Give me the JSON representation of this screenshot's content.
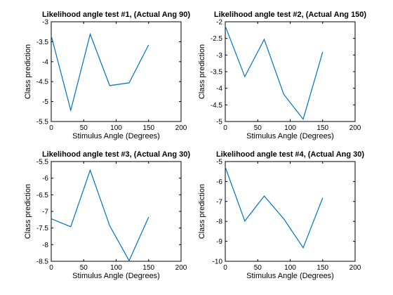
{
  "line_color": "#0072bd",
  "chart_data": [
    {
      "type": "line",
      "title": "Likelihood angle test #1, (Actual Ang 90)",
      "xlabel": "Stimulus Angle (Degrees)",
      "ylabel": "Class prediction",
      "xlim": [
        0,
        200
      ],
      "ylim": [
        -5.5,
        -3
      ],
      "xticks": [
        0,
        50,
        100,
        150,
        200
      ],
      "yticks": [
        -5.5,
        -5,
        -4.5,
        -4,
        -3.5,
        -3
      ],
      "xtick_labels": [
        "0",
        "50",
        "100",
        "150",
        "200"
      ],
      "ytick_labels": [
        "-5.5",
        "-5",
        "-4.5",
        "-4",
        "-3.5",
        "-3"
      ],
      "x": [
        0,
        30,
        60,
        90,
        120,
        150
      ],
      "y": [
        -3.35,
        -5.22,
        -3.31,
        -4.6,
        -4.53,
        -3.58
      ]
    },
    {
      "type": "line",
      "title": "Likelihood angle test #2, (Actual Ang 150)",
      "xlabel": "Stimulus Angle (Degrees)",
      "ylabel": "Class prediction",
      "xlim": [
        0,
        200
      ],
      "ylim": [
        -5,
        -2
      ],
      "xticks": [
        0,
        50,
        100,
        150,
        200
      ],
      "yticks": [
        -5,
        -4.5,
        -4,
        -3.5,
        -3,
        -2.5,
        -2
      ],
      "xtick_labels": [
        "0",
        "50",
        "100",
        "150",
        "200"
      ],
      "ytick_labels": [
        "-5",
        "-4.5",
        "-4",
        "-3.5",
        "-3",
        "-2.5",
        "-2"
      ],
      "x": [
        0,
        30,
        60,
        90,
        120,
        150
      ],
      "y": [
        -2.13,
        -3.65,
        -2.53,
        -4.18,
        -4.93,
        -2.91
      ]
    },
    {
      "type": "line",
      "title": "Likelihood angle test #3, (Actual Ang 30)",
      "xlabel": "Stimulus Angle (Degrees)",
      "ylabel": "Class prediction",
      "xlim": [
        0,
        200
      ],
      "ylim": [
        -8.5,
        -5.5
      ],
      "xticks": [
        0,
        50,
        100,
        150,
        200
      ],
      "yticks": [
        -8.5,
        -8,
        -7.5,
        -7,
        -6.5,
        -6,
        -5.5
      ],
      "xtick_labels": [
        "0",
        "50",
        "100",
        "150",
        "200"
      ],
      "ytick_labels": [
        "-8.5",
        "-8",
        "-7.5",
        "-7",
        "-6.5",
        "-6",
        "-5.5"
      ],
      "x": [
        0,
        30,
        60,
        90,
        120,
        150
      ],
      "y": [
        -7.22,
        -7.46,
        -5.76,
        -7.43,
        -8.48,
        -7.17
      ]
    },
    {
      "type": "line",
      "title": "Likelihood angle test #4, (Actual Ang 30)",
      "xlabel": "Stimulus Angle (Degrees)",
      "ylabel": "Class prediction",
      "xlim": [
        0,
        200
      ],
      "ylim": [
        -10,
        -5
      ],
      "xticks": [
        0,
        50,
        100,
        150,
        200
      ],
      "yticks": [
        -10,
        -9,
        -8,
        -7,
        -6,
        -5
      ],
      "xtick_labels": [
        "0",
        "50",
        "100",
        "150",
        "200"
      ],
      "ytick_labels": [
        "-10",
        "-9",
        "-8",
        "-7",
        "-6",
        "-5"
      ],
      "x": [
        0,
        30,
        60,
        90,
        120,
        150
      ],
      "y": [
        -5.28,
        -7.98,
        -6.73,
        -7.87,
        -9.32,
        -6.82
      ]
    }
  ]
}
